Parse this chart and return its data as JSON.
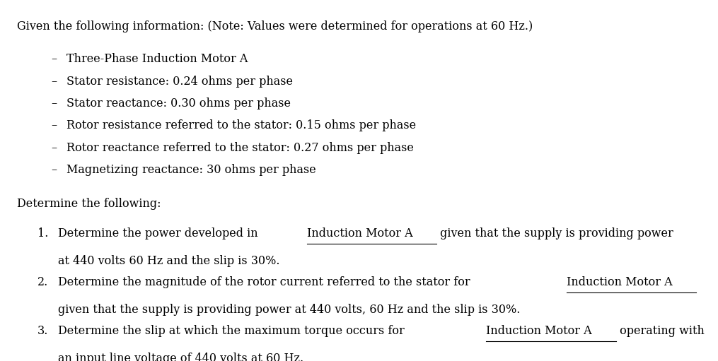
{
  "bg_color": "#ffffff",
  "text_color": "#000000",
  "font_family": "serif",
  "font_size_body": 11.5,
  "title_line": "Given the following information: (Note: Values were determined for operations at 60 Hz.)",
  "bullet_items": [
    "Three-Phase Induction Motor A",
    "Stator resistance: 0.24 ohms per phase",
    "Stator reactance: 0.30 ohms per phase",
    "Rotor resistance referred to the stator: 0.15 ohms per phase",
    "Rotor reactance referred to the stator: 0.27 ohms per phase",
    "Magnetizing reactance: 30 ohms per phase"
  ],
  "determine_header": "Determine the following:",
  "numbered_items": [
    {
      "number": "1.",
      "line1": "Determine the power developed in ",
      "underline1": "Induction Motor A",
      "line1b": " given that the supply is providing power",
      "line2": "at 440 volts 60 Hz and the slip is 30%."
    },
    {
      "number": "2.",
      "line1": "Determine the magnitude of the rotor current referred to the stator for ",
      "underline1": "Induction Motor A",
      "line1b": "",
      "line2": "given that the supply is providing power at 440 volts, 60 Hz and the slip is 30%."
    },
    {
      "number": "3.",
      "line1": "Determine the slip at which the maximum torque occurs for ",
      "underline1": "Induction Motor A",
      "line1b": " operating with",
      "line2": "an input line voltage of 440 volts at 60 Hz."
    }
  ]
}
